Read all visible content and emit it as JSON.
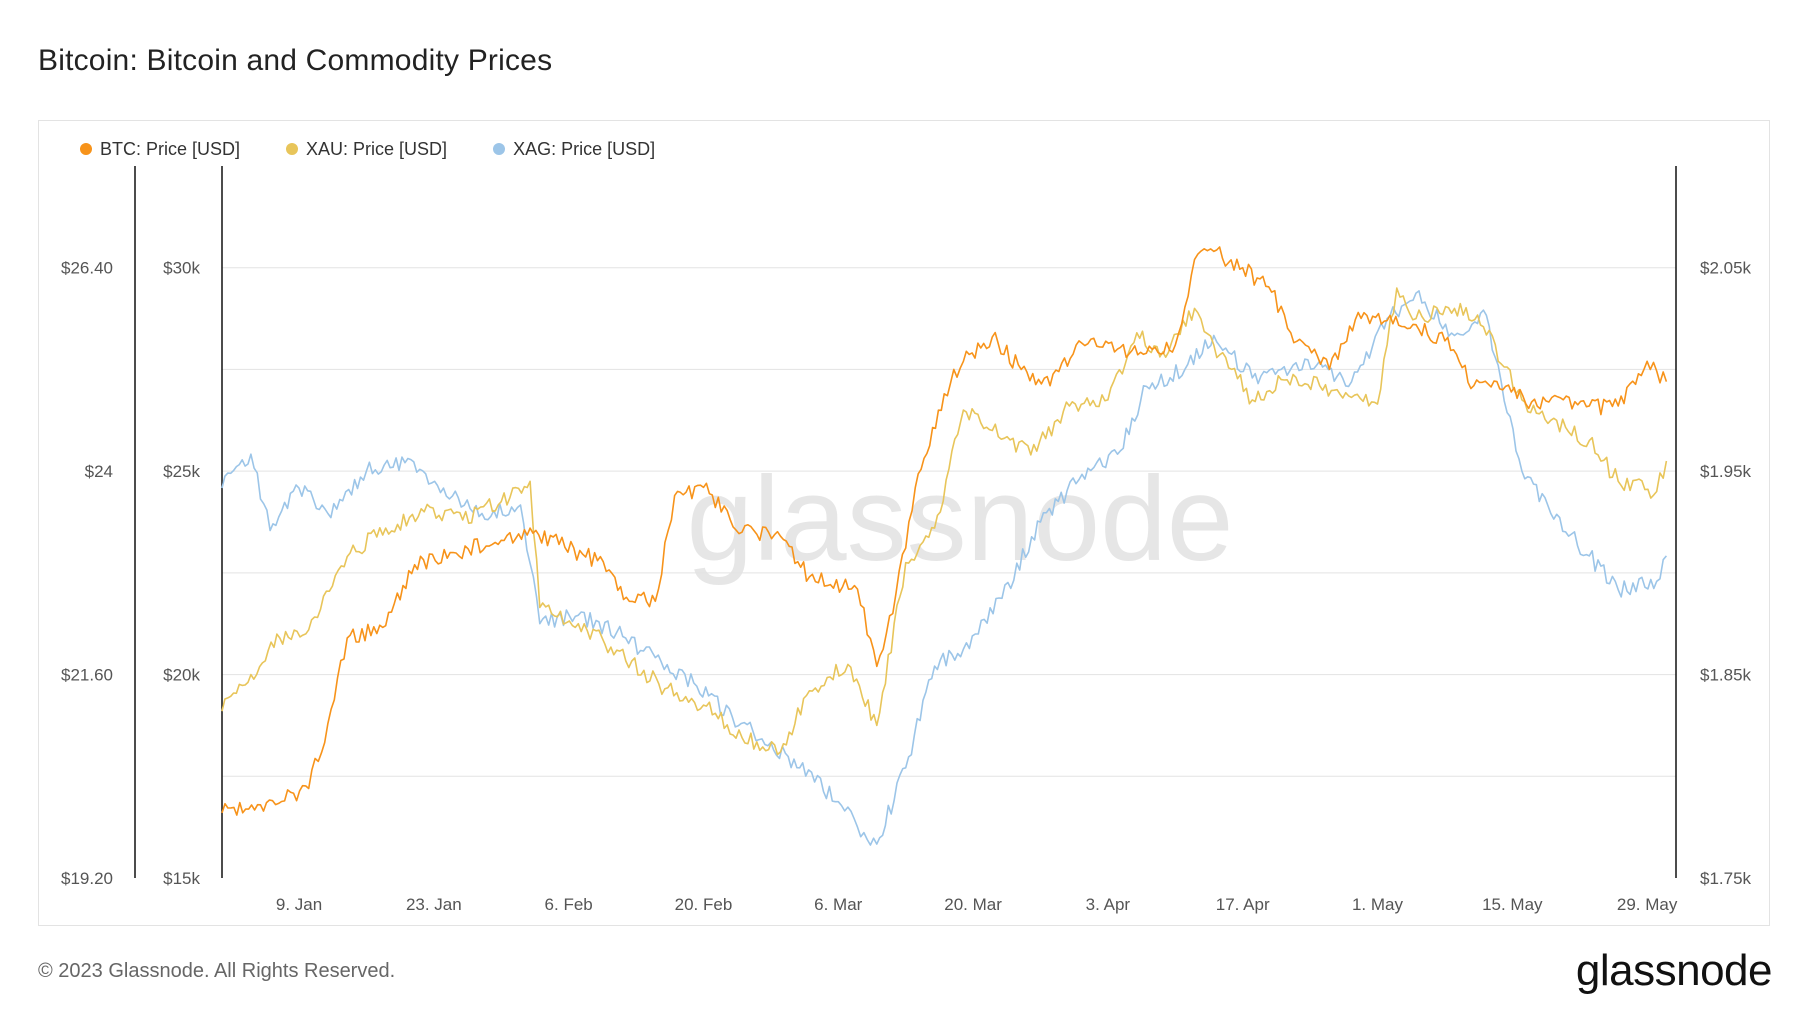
{
  "title": "Bitcoin: Bitcoin and Commodity Prices",
  "footer": "© 2023 Glassnode. All Rights Reserved.",
  "brand": "glassnode",
  "watermark": "glassnode",
  "colors": {
    "btc": "#f7931a",
    "xau": "#e8c55a",
    "xag": "#9cc5e8",
    "grid": "#e3e3e3",
    "axis": "#111111"
  },
  "chart_data": {
    "type": "line",
    "grid": true,
    "legend_position": "top-left",
    "x_ticks": [
      "9. Jan",
      "23. Jan",
      "6. Feb",
      "20. Feb",
      "6. Mar",
      "20. Mar",
      "3. Apr",
      "17. Apr",
      "1. May",
      "15. May",
      "29. May"
    ],
    "x_tick_dates": [
      "2023-01-09",
      "2023-01-23",
      "2023-02-06",
      "2023-02-20",
      "2023-03-06",
      "2023-03-20",
      "2023-04-03",
      "2023-04-17",
      "2023-05-01",
      "2023-05-15",
      "2023-05-29"
    ],
    "x_range": [
      "2023-01-01",
      "2023-06-01"
    ],
    "axes": {
      "xag": {
        "position": "left-outer",
        "ticks": [
          "$19.20",
          "$21.60",
          "$24",
          "$26.40"
        ],
        "values": [
          19.2,
          21.6,
          24.0,
          26.4
        ],
        "range": [
          19.2,
          27.6
        ]
      },
      "btc": {
        "position": "left-inner",
        "ticks": [
          "$15k",
          "$20k",
          "$25k",
          "$30k"
        ],
        "values": [
          15000,
          20000,
          25000,
          30000
        ],
        "range": [
          15000,
          32500
        ]
      },
      "xau": {
        "position": "right",
        "ticks": [
          "$1.75k",
          "$1.85k",
          "$1.95k",
          "$2.05k"
        ],
        "values": [
          1750,
          1850,
          1950,
          2050
        ],
        "range": [
          1750,
          2100
        ]
      }
    },
    "series": [
      {
        "name": "BTC: Price [USD]",
        "axis": "btc",
        "color": "#f7931a",
        "x": [
          "2023-01-01",
          "2023-01-05",
          "2023-01-10",
          "2023-01-12",
          "2023-01-14",
          "2023-01-18",
          "2023-01-21",
          "2023-01-25",
          "2023-01-30",
          "2023-02-02",
          "2023-02-05",
          "2023-02-09",
          "2023-02-12",
          "2023-02-15",
          "2023-02-17",
          "2023-02-20",
          "2023-02-24",
          "2023-02-28",
          "2023-03-03",
          "2023-03-08",
          "2023-03-10",
          "2023-03-12",
          "2023-03-14",
          "2023-03-17",
          "2023-03-19",
          "2023-03-22",
          "2023-03-25",
          "2023-03-28",
          "2023-03-31",
          "2023-04-04",
          "2023-04-07",
          "2023-04-10",
          "2023-04-12",
          "2023-04-14",
          "2023-04-17",
          "2023-04-20",
          "2023-04-22",
          "2023-04-26",
          "2023-04-29",
          "2023-05-02",
          "2023-05-05",
          "2023-05-08",
          "2023-05-11",
          "2023-05-14",
          "2023-05-17",
          "2023-05-20",
          "2023-05-23",
          "2023-05-26",
          "2023-05-29",
          "2023-05-31"
        ],
        "y": [
          16600,
          16800,
          17200,
          18800,
          20900,
          21200,
          22700,
          23000,
          23300,
          23600,
          23200,
          22800,
          21900,
          21800,
          24400,
          24600,
          23500,
          23400,
          22400,
          22100,
          20200,
          22000,
          24600,
          26900,
          27700,
          28300,
          27500,
          27100,
          28200,
          28000,
          27900,
          28100,
          30200,
          30400,
          30000,
          29400,
          28400,
          27500,
          28900,
          28700,
          28600,
          28200,
          27100,
          27000,
          26700,
          26800,
          26600,
          26600,
          27700,
          27200
        ]
      },
      {
        "name": "XAU: Price [USD]",
        "axis": "xau",
        "color": "#e8c55a",
        "x": [
          "2023-01-01",
          "2023-01-04",
          "2023-01-07",
          "2023-01-10",
          "2023-01-14",
          "2023-01-18",
          "2023-01-22",
          "2023-01-26",
          "2023-01-30",
          "2023-02-02",
          "2023-02-03",
          "2023-02-07",
          "2023-02-11",
          "2023-02-16",
          "2023-02-20",
          "2023-02-24",
          "2023-02-28",
          "2023-03-03",
          "2023-03-07",
          "2023-03-10",
          "2023-03-13",
          "2023-03-16",
          "2023-03-19",
          "2023-03-22",
          "2023-03-26",
          "2023-03-30",
          "2023-04-03",
          "2023-04-06",
          "2023-04-09",
          "2023-04-12",
          "2023-04-14",
          "2023-04-18",
          "2023-04-21",
          "2023-04-25",
          "2023-04-28",
          "2023-05-01",
          "2023-05-03",
          "2023-05-05",
          "2023-05-09",
          "2023-05-12",
          "2023-05-16",
          "2023-05-19",
          "2023-05-23",
          "2023-05-26",
          "2023-05-30",
          "2023-05-31"
        ],
        "y": [
          1832,
          1850,
          1868,
          1872,
          1908,
          1922,
          1930,
          1926,
          1935,
          1945,
          1883,
          1875,
          1862,
          1843,
          1835,
          1819,
          1812,
          1842,
          1855,
          1825,
          1905,
          1922,
          1980,
          1970,
          1958,
          1982,
          1985,
          2018,
          2006,
          2030,
          2012,
          1985,
          1995,
          1992,
          1987,
          1983,
          2040,
          2025,
          2030,
          2021,
          1985,
          1975,
          1965,
          1945,
          1940,
          1955
        ]
      },
      {
        "name": "XAG: Price [USD]",
        "axis": "xag",
        "color": "#9cc5e8",
        "x": [
          "2023-01-01",
          "2023-01-04",
          "2023-01-06",
          "2023-01-09",
          "2023-01-12",
          "2023-01-16",
          "2023-01-20",
          "2023-01-24",
          "2023-01-28",
          "2023-02-01",
          "2023-02-03",
          "2023-02-07",
          "2023-02-11",
          "2023-02-15",
          "2023-02-19",
          "2023-02-23",
          "2023-02-27",
          "2023-03-02",
          "2023-03-06",
          "2023-03-08",
          "2023-03-10",
          "2023-03-13",
          "2023-03-16",
          "2023-03-19",
          "2023-03-23",
          "2023-03-27",
          "2023-03-31",
          "2023-04-04",
          "2023-04-07",
          "2023-04-11",
          "2023-04-14",
          "2023-04-18",
          "2023-04-21",
          "2023-04-25",
          "2023-04-28",
          "2023-05-02",
          "2023-05-05",
          "2023-05-09",
          "2023-05-12",
          "2023-05-16",
          "2023-05-19",
          "2023-05-23",
          "2023-05-26",
          "2023-05-30",
          "2023-05-31"
        ],
        "y": [
          23.8,
          24.2,
          23.3,
          23.8,
          23.5,
          24.0,
          24.1,
          23.8,
          23.5,
          23.6,
          22.2,
          22.3,
          22.1,
          21.8,
          21.5,
          21.1,
          20.8,
          20.5,
          20.1,
          19.8,
          19.6,
          20.5,
          21.7,
          21.9,
          22.5,
          23.4,
          23.9,
          24.2,
          25.0,
          25.2,
          25.6,
          25.1,
          25.2,
          25.3,
          25.0,
          25.8,
          26.1,
          25.6,
          25.9,
          24.0,
          23.5,
          23.0,
          22.6,
          22.7,
          23.0
        ]
      }
    ]
  }
}
